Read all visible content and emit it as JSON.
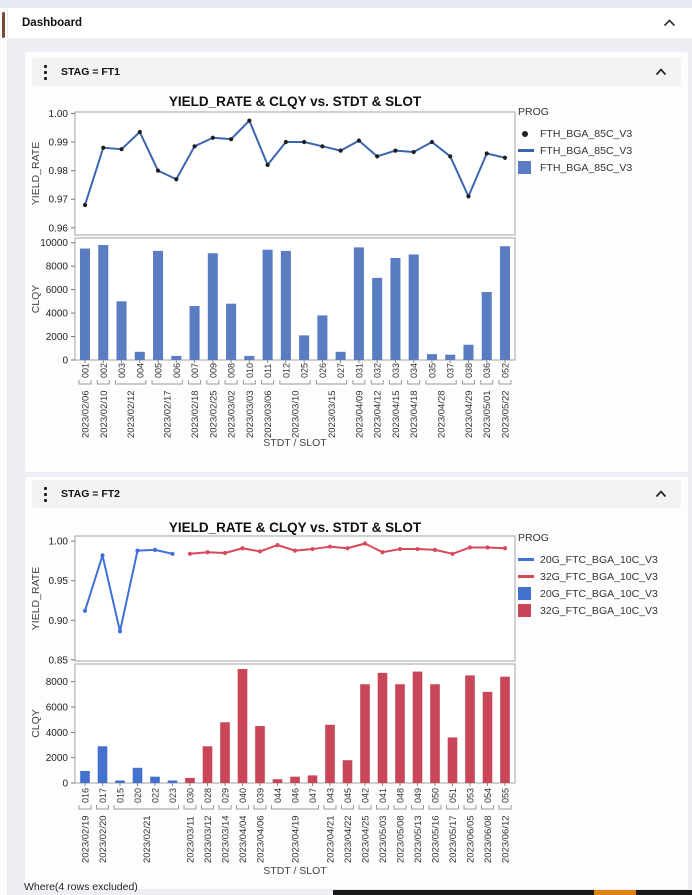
{
  "window": {
    "title": "Dashboard"
  },
  "where_note": "Where(4 rows excluded)",
  "panels": [
    {
      "header": "STAG = FT1"
    },
    {
      "header": "STAG = FT2"
    }
  ],
  "chart_data": [
    {
      "type": "line+bar",
      "panel": "STAG = FT1",
      "title": "YIELD_RATE & CLQY vs. STDT & SLOT",
      "xlabel": "STDT / SLOT",
      "categories_slot": [
        "001",
        "002",
        "003",
        "004",
        "005",
        "006",
        "007",
        "009",
        "008",
        "010",
        "011",
        "012",
        "025",
        "026",
        "027",
        "031",
        "032",
        "033",
        "034",
        "035",
        "037",
        "038",
        "036",
        "052"
      ],
      "date_groups": [
        [
          "2023/02/06",
          1
        ],
        [
          "2023/02/10",
          1
        ],
        [
          "2023/02/12",
          2
        ],
        [
          "2023/02/17",
          2
        ],
        [
          "2023/02/18",
          1
        ],
        [
          "2023/02/25",
          1
        ],
        [
          "2023/03/02",
          1
        ],
        [
          "2023/03/03",
          1
        ],
        [
          "2023/03/06",
          1
        ],
        [
          "2023/03/10",
          2
        ],
        [
          "2023/03/15",
          2
        ],
        [
          "2023/04/09",
          1
        ],
        [
          "2023/04/12",
          1
        ],
        [
          "2023/04/15",
          1
        ],
        [
          "2023/04/18",
          1
        ],
        [
          "2023/04/28",
          2
        ],
        [
          "2023/04/29",
          1
        ],
        [
          "2023/05/01",
          1
        ],
        [
          "2023/05/22",
          1
        ]
      ],
      "line_axis": {
        "label": "YIELD_RATE",
        "ticks": [
          1.0,
          0.99,
          0.98,
          0.97,
          0.96
        ],
        "ylim": [
          0.9575,
          1.0005
        ],
        "decimals": 2
      },
      "bar_axis": {
        "label": "CLQY",
        "ticks": [
          0,
          2000,
          4000,
          6000,
          8000,
          10000
        ],
        "ylim": [
          0,
          10400
        ]
      },
      "series": [
        {
          "name": "FTH_BGA_85C_V3",
          "line_color": "#3a66b0",
          "marker_color": "#1f1f1f",
          "bar_color": "#5a7cc2",
          "start_index": 0,
          "yield_rate": [
            0.968,
            0.988,
            0.9875,
            0.9935,
            0.98,
            0.977,
            0.9885,
            0.9915,
            0.991,
            0.9975,
            0.982,
            0.99,
            0.99,
            0.9885,
            0.987,
            0.9905,
            0.985,
            0.987,
            0.9865,
            0.99,
            0.985,
            0.971,
            0.986,
            0.9845
          ],
          "clqy": [
            9500,
            9800,
            5000,
            700,
            9300,
            350,
            4600,
            9100,
            4800,
            350,
            9400,
            9300,
            2100,
            3800,
            700,
            9600,
            7000,
            8700,
            9000,
            500,
            450,
            1300,
            5800,
            9700
          ]
        }
      ],
      "legend": {
        "title": "PROG",
        "entries": [
          {
            "marker": "dot",
            "color": "#1f1f1f",
            "label": "FTH_BGA_85C_V3"
          },
          {
            "marker": "line",
            "color": "#3a66b0",
            "label": "FTH_BGA_85C_V3"
          },
          {
            "marker": "square",
            "color": "#5a7cc2",
            "label": "FTH_BGA_85C_V3"
          }
        ]
      }
    },
    {
      "type": "line+bar",
      "panel": "STAG = FT2",
      "title": "YIELD_RATE & CLQY vs. STDT & SLOT",
      "xlabel": "STDT / SLOT",
      "categories_slot": [
        "016",
        "017",
        "015",
        "020",
        "022",
        "023",
        "030",
        "028",
        "029",
        "040",
        "039",
        "044",
        "046",
        "047",
        "043",
        "045",
        "042",
        "041",
        "048",
        "049",
        "050",
        "051",
        "053",
        "054",
        "055"
      ],
      "date_groups": [
        [
          "2023/02/19",
          1
        ],
        [
          "2023/02/20",
          1
        ],
        [
          "2023/02/21",
          4
        ],
        [
          "2023/03/11",
          1
        ],
        [
          "2023/03/12",
          1
        ],
        [
          "2023/03/14",
          1
        ],
        [
          "2023/04/04",
          1
        ],
        [
          "2023/04/06",
          1
        ],
        [
          "2023/04/19",
          3
        ],
        [
          "2023/04/21",
          1
        ],
        [
          "2023/04/22",
          1
        ],
        [
          "2023/04/25",
          1
        ],
        [
          "2023/05/03",
          1
        ],
        [
          "2023/05/08",
          1
        ],
        [
          "2023/05/13",
          1
        ],
        [
          "2023/05/16",
          1
        ],
        [
          "2023/05/17",
          1
        ],
        [
          "2023/06/05",
          1
        ],
        [
          "2023/06/08",
          1
        ],
        [
          "2023/06/12",
          1
        ]
      ],
      "line_axis": {
        "label": "YIELD_RATE",
        "ticks": [
          1.0,
          0.95,
          0.9,
          0.85
        ],
        "ylim": [
          0.8485,
          1.0065
        ],
        "decimals": 2
      },
      "bar_axis": {
        "label": "CLQY",
        "ticks": [
          0,
          2000,
          4000,
          6000,
          8000
        ],
        "ylim": [
          0,
          9400
        ]
      },
      "series": [
        {
          "name": "20G_FTC_BGA_10C_V3",
          "line_color": "#3f6fd8",
          "marker_color": "#3f6fd8",
          "bar_color": "#4470ce",
          "start_index": 0,
          "yield_rate": [
            0.912,
            0.982,
            0.886,
            0.988,
            0.989,
            0.984
          ],
          "clqy": [
            950,
            2900,
            200,
            1200,
            500,
            200
          ]
        },
        {
          "name": "32G_FTC_BGA_10C_V3",
          "line_color": "#d8495a",
          "marker_color": "#d8495a",
          "bar_color": "#c94658",
          "start_index": 6,
          "yield_rate": [
            0.984,
            0.986,
            0.985,
            0.991,
            0.987,
            0.995,
            0.988,
            0.99,
            0.993,
            0.991,
            0.997,
            0.986,
            0.99,
            0.99,
            0.989,
            0.984,
            0.992,
            0.992,
            0.991
          ],
          "clqy": [
            400,
            2900,
            4800,
            9000,
            4500,
            300,
            500,
            600,
            4600,
            1800,
            7800,
            8700,
            7800,
            8800,
            7800,
            3600,
            8500,
            7200,
            8400
          ]
        }
      ],
      "legend": {
        "title": "PROG",
        "entries": [
          {
            "marker": "line",
            "color": "#3f6fd8",
            "label": "20G_FTC_BGA_10C_V3"
          },
          {
            "marker": "line",
            "color": "#d8495a",
            "label": "32G_FTC_BGA_10C_V3"
          },
          {
            "marker": "square",
            "color": "#4470ce",
            "label": "20G_FTC_BGA_10C_V3"
          },
          {
            "marker": "square",
            "color": "#c94658",
            "label": "32G_FTC_BGA_10C_V3"
          }
        ]
      }
    }
  ]
}
